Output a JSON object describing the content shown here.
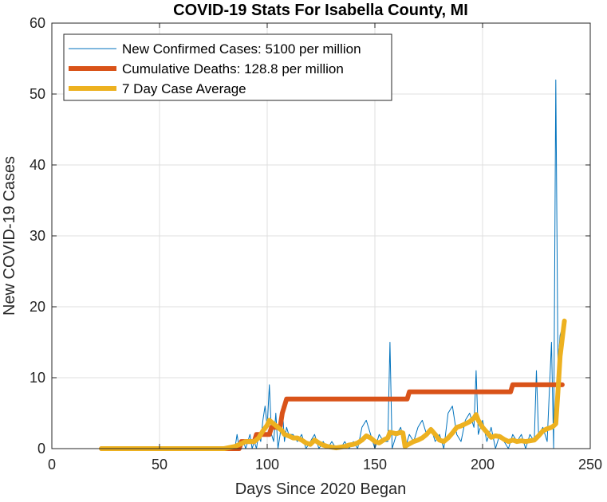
{
  "chart_data": {
    "type": "line",
    "title": "COVID-19 Stats For Isabella County, MI",
    "xlabel": "Days Since 2020 Began",
    "ylabel": "New COVID-19 Cases",
    "xlim": [
      0,
      250
    ],
    "ylim": [
      0,
      60
    ],
    "xticks": [
      0,
      50,
      100,
      150,
      200,
      250
    ],
    "yticks": [
      0,
      10,
      20,
      30,
      40,
      50,
      60
    ],
    "grid": true,
    "legend_position": "top-left",
    "series": [
      {
        "name": "New Confirmed Cases: 5100 per million",
        "color": "#0072BD",
        "x": [
          23,
          40,
          60,
          80,
          85,
          86,
          87,
          88,
          89,
          90,
          91,
          92,
          93,
          94,
          95,
          96,
          97,
          98,
          99,
          100,
          101,
          102,
          103,
          104,
          105,
          106,
          107,
          108,
          109,
          110,
          112,
          114,
          116,
          118,
          120,
          122,
          124,
          126,
          128,
          130,
          132,
          134,
          136,
          138,
          140,
          142,
          144,
          146,
          148,
          150,
          152,
          154,
          156,
          157,
          158,
          160,
          162,
          164,
          166,
          168,
          170,
          172,
          174,
          176,
          178,
          180,
          182,
          184,
          186,
          188,
          190,
          192,
          194,
          196,
          197,
          198,
          200,
          202,
          204,
          206,
          208,
          210,
          212,
          214,
          216,
          218,
          220,
          222,
          224,
          225,
          226,
          228,
          230,
          232,
          233,
          234,
          235,
          236,
          237,
          238
        ],
        "values": [
          0,
          0,
          0,
          0,
          0,
          2,
          0,
          0,
          1,
          0,
          1,
          2,
          0,
          1,
          0,
          2,
          1,
          4,
          6,
          3,
          9,
          2,
          1,
          5,
          0,
          2,
          6,
          1,
          3,
          2,
          2,
          1,
          2,
          0,
          1,
          2,
          0,
          1,
          0,
          1,
          0,
          0,
          1,
          0,
          1,
          0,
          3,
          4,
          2,
          0,
          2,
          1,
          1,
          15,
          0,
          2,
          3,
          0,
          2,
          1,
          3,
          4,
          2,
          3,
          1,
          2,
          0,
          5,
          6,
          2,
          1,
          4,
          5,
          3,
          11,
          2,
          4,
          1,
          3,
          0,
          2,
          1,
          0,
          2,
          1,
          2,
          0,
          2,
          1,
          11,
          2,
          3,
          1,
          15,
          0,
          52,
          12,
          16,
          17,
          18
        ]
      },
      {
        "name": "Cumulative Deaths: 128.8 per million",
        "color": "#D95319",
        "x": [
          23,
          87,
          88,
          94,
          95,
          101,
          102,
          106,
          107,
          108,
          109,
          165,
          166,
          213,
          214,
          237
        ],
        "values": [
          0,
          0,
          1,
          1,
          2,
          2,
          3,
          3,
          5,
          6,
          7,
          7,
          8,
          8,
          9,
          9
        ]
      },
      {
        "name": "7 Day Case Average",
        "color": "#EDB120",
        "x": [
          23,
          40,
          60,
          80,
          85,
          88,
          90,
          92,
          94,
          96,
          98,
          100,
          101,
          103,
          105,
          107,
          108,
          110,
          112,
          114,
          116,
          118,
          120,
          122,
          124,
          126,
          128,
          130,
          132,
          134,
          136,
          138,
          140,
          142,
          144,
          146,
          148,
          150,
          152,
          154,
          156,
          157,
          160,
          162,
          163,
          164,
          165,
          168,
          170,
          172,
          174,
          176,
          178,
          180,
          182,
          184,
          186,
          188,
          190,
          192,
          194,
          196,
          197,
          198,
          200,
          202,
          204,
          206,
          208,
          210,
          212,
          214,
          216,
          218,
          220,
          222,
          224,
          226,
          228,
          230,
          232,
          233,
          234,
          235,
          236,
          237,
          238
        ],
        "values": [
          0,
          0,
          0,
          0,
          0.3,
          0.7,
          1,
          1,
          1,
          1.5,
          2.5,
          3.3,
          4,
          3.5,
          3,
          2.5,
          2,
          1.8,
          1.5,
          1.5,
          1.2,
          0.8,
          0.6,
          1.2,
          0.8,
          0.5,
          0.3,
          0.2,
          0.1,
          0.2,
          0.3,
          0.5,
          0.6,
          0.8,
          1.2,
          1.8,
          1.5,
          1.0,
          0.8,
          1.2,
          1.5,
          2.3,
          2.1,
          2.3,
          2.2,
          0.3,
          0.5,
          1.0,
          1.2,
          1.5,
          2.0,
          2.7,
          2.0,
          1.2,
          1.0,
          1.5,
          2.2,
          3.0,
          3.2,
          3.5,
          3.8,
          4.3,
          4.8,
          4.0,
          3.0,
          2.3,
          1.6,
          1.8,
          1.7,
          1.3,
          1.0,
          1.2,
          1.0,
          1.1,
          1.0,
          1.1,
          1.2,
          1.8,
          2.5,
          2.8,
          3.0,
          3.2,
          3.5,
          8,
          13,
          15.5,
          18
        ]
      }
    ]
  }
}
